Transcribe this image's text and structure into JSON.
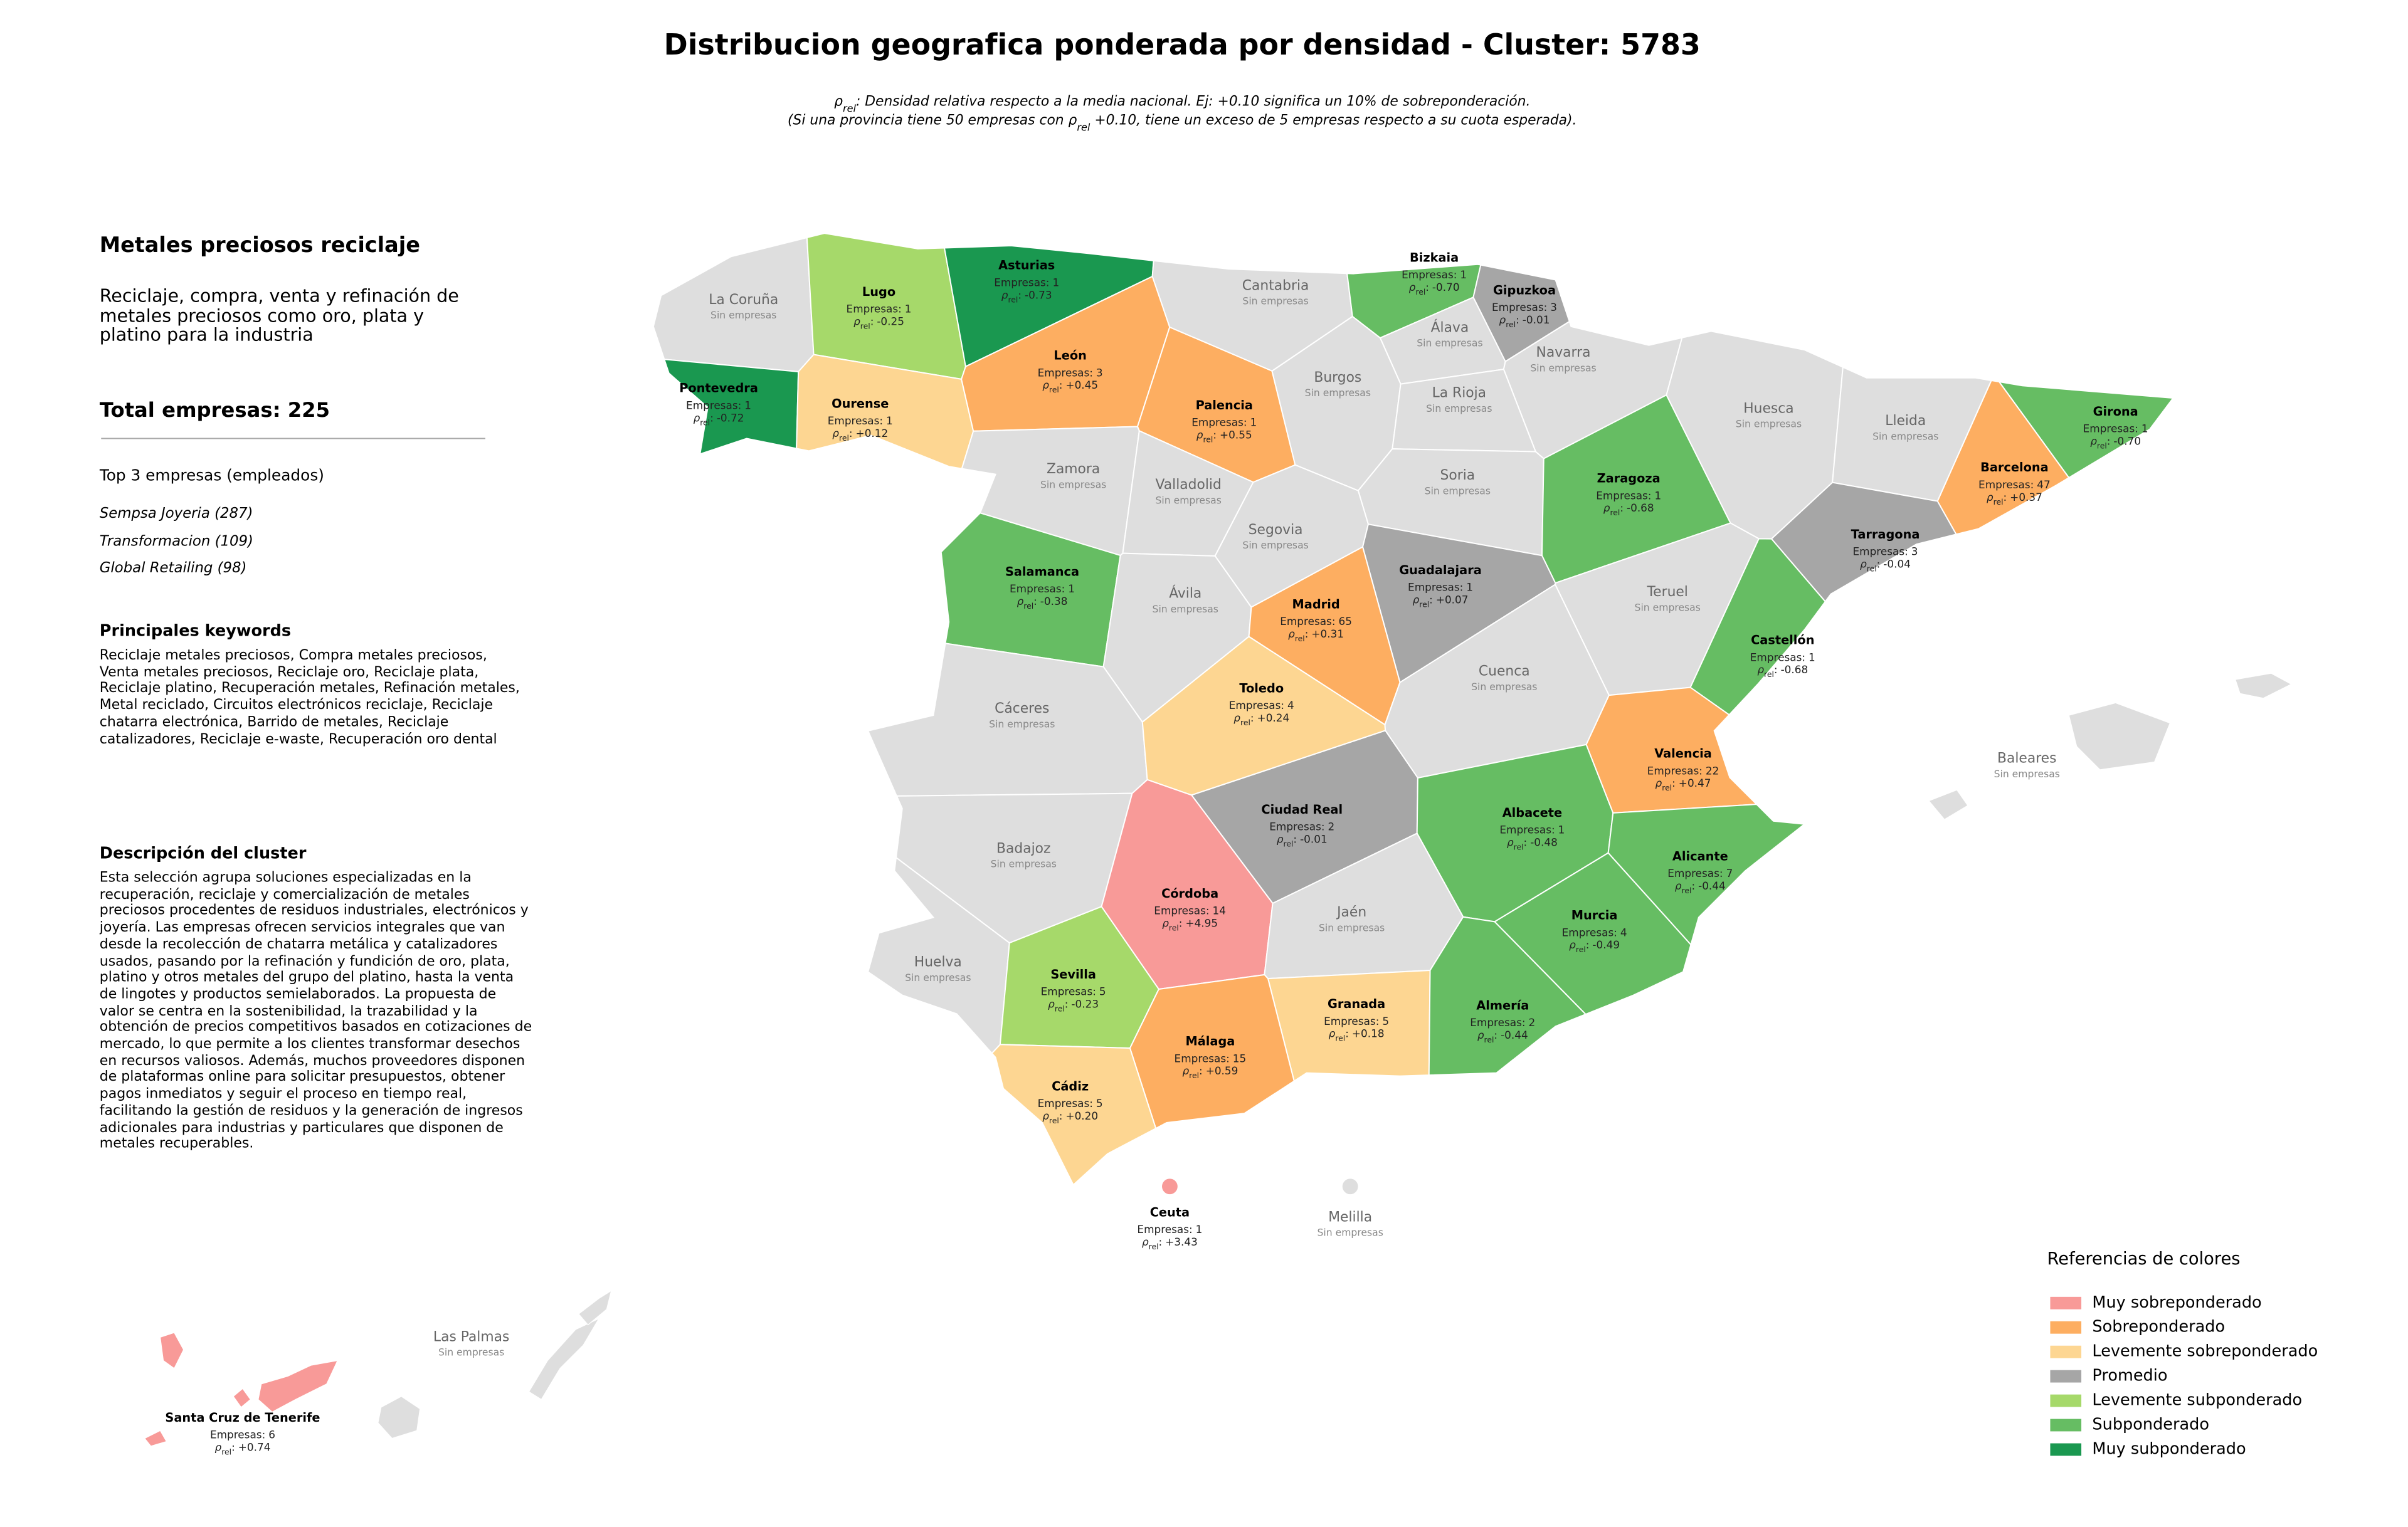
{
  "title": "Distribucion geografica ponderada por densidad - Cluster: 5783",
  "subtitle_lines": [
    [
      "ρ",
      "rel",
      ": Densidad relativa respecto a la media nacional. Ej: +0.10 significa un 10% de sobreponderación."
    ],
    [
      "(Si una provincia tiene 50 empresas con ρ",
      "rel",
      " +0.10, tiene un exceso de 5 empresas respecto a su cuota esperada)."
    ]
  ],
  "panel": {
    "title": "Metales preciosos reciclaje",
    "description": "Reciclaje, compra, venta y refinación de metales preciosos como oro, plata y platino para la industria",
    "total_label": "Total empresas:",
    "total": 225,
    "top_title": "Top 3 empresas (empleados)",
    "top_companies": [
      "Sempsa Joyeria (287)",
      "Transformacion (109)",
      "Global Retailing (98)"
    ],
    "keywords_title": "Principales keywords",
    "keywords": "Reciclaje metales preciosos, Compra metales preciosos, Venta metales preciosos, Reciclaje oro, Reciclaje plata, Reciclaje platino, Recuperación metales, Refinación metales, Metal reciclado, Circuitos electrónicos reciclaje, Reciclaje chatarra electrónica, Barrido de metales, Reciclaje catalizadores, Reciclaje e-waste, Recuperación oro dental",
    "cluster_title": "Descripción del cluster",
    "cluster_description": "Esta selección agrupa soluciones especializadas en la recuperación, reciclaje y comercialización de metales preciosos procedentes de residuos industriales, electrónicos y joyería. Las empresas ofrecen servicios integrales que van desde la recolección de chatarra metálica y catalizadores usados, pasando por la refinación y fundición de oro, plata, platino y otros metales del grupo del platino, hasta la venta de lingotes y productos semielaborados. La propuesta de valor se centra en la sostenibilidad, la trazabilidad y la obtención de precios competitivos basados en cotizaciones de mercado, lo que permite a los clientes transformar desechos en recursos valiosos. Además, muchos proveedores disponen de plataformas online para solicitar presupuestos, obtener pagos inmediatos y seguir el proceso en tiempo real, facilitando la gestión de residuos y la generación de ingresos adicionales para industrias y particulares que disponen de metales recuperables."
  },
  "map": {
    "empresas_prefix": "Empresas:",
    "rho_symbol": "ρ",
    "rho_subscript": "rel",
    "rho_separator": ":",
    "no_data_label": "Sin empresas",
    "no_data_color": "#dedede",
    "provinces": [
      {
        "name": "La Coruña"
      },
      {
        "name": "Lugo",
        "empresas": 1,
        "rho": -0.25,
        "rho_label": "-0.25",
        "category": "Levemente subponderado"
      },
      {
        "name": "Asturias",
        "empresas": 1,
        "rho": -0.73,
        "rho_label": "-0.73",
        "category": "Muy subponderado"
      },
      {
        "name": "Cantabria"
      },
      {
        "name": "Bizkaia",
        "empresas": 1,
        "rho": -0.7,
        "rho_label": "-0.70",
        "category": "Subponderado"
      },
      {
        "name": "Gipuzkoa",
        "empresas": 3,
        "rho": -0.01,
        "rho_label": "-0.01",
        "category": "Promedio"
      },
      {
        "name": "Álava"
      },
      {
        "name": "Navarra"
      },
      {
        "name": "Pontevedra",
        "empresas": 1,
        "rho": -0.72,
        "rho_label": "-0.72",
        "category": "Muy subponderado"
      },
      {
        "name": "Ourense",
        "empresas": 1,
        "rho": 0.12,
        "rho_label": "+0.12",
        "category": "Levemente sobreponderado"
      },
      {
        "name": "León",
        "empresas": 3,
        "rho": 0.45,
        "rho_label": "+0.45",
        "category": "Sobreponderado"
      },
      {
        "name": "Palencia",
        "empresas": 1,
        "rho": 0.55,
        "rho_label": "+0.55",
        "category": "Sobreponderado"
      },
      {
        "name": "Burgos"
      },
      {
        "name": "La Rioja"
      },
      {
        "name": "Huesca"
      },
      {
        "name": "Lleida"
      },
      {
        "name": "Girona",
        "empresas": 1,
        "rho": -0.7,
        "rho_label": "-0.70",
        "category": "Subponderado"
      },
      {
        "name": "Zamora"
      },
      {
        "name": "Valladolid"
      },
      {
        "name": "Soria"
      },
      {
        "name": "Zaragoza",
        "empresas": 1,
        "rho": -0.68,
        "rho_label": "-0.68",
        "category": "Subponderado"
      },
      {
        "name": "Barcelona",
        "empresas": 47,
        "rho": 0.37,
        "rho_label": "+0.37",
        "category": "Sobreponderado"
      },
      {
        "name": "Salamanca",
        "empresas": 1,
        "rho": -0.38,
        "rho_label": "-0.38",
        "category": "Subponderado"
      },
      {
        "name": "Segovia"
      },
      {
        "name": "Ávila"
      },
      {
        "name": "Guadalajara",
        "empresas": 1,
        "rho": 0.07,
        "rho_label": "+0.07",
        "category": "Promedio"
      },
      {
        "name": "Madrid",
        "empresas": 65,
        "rho": 0.31,
        "rho_label": "+0.31",
        "category": "Sobreponderado"
      },
      {
        "name": "Tarragona",
        "empresas": 3,
        "rho": -0.04,
        "rho_label": "-0.04",
        "category": "Promedio"
      },
      {
        "name": "Teruel"
      },
      {
        "name": "Castellón",
        "empresas": 1,
        "rho": -0.68,
        "rho_label": "-0.68",
        "category": "Subponderado"
      },
      {
        "name": "Cáceres"
      },
      {
        "name": "Toledo",
        "empresas": 4,
        "rho": 0.24,
        "rho_label": "+0.24",
        "category": "Levemente sobreponderado"
      },
      {
        "name": "Cuenca"
      },
      {
        "name": "Valencia",
        "empresas": 22,
        "rho": 0.47,
        "rho_label": "+0.47",
        "category": "Sobreponderado"
      },
      {
        "name": "Badajoz"
      },
      {
        "name": "Ciudad Real",
        "empresas": 2,
        "rho": -0.01,
        "rho_label": "-0.01",
        "category": "Promedio"
      },
      {
        "name": "Albacete",
        "empresas": 1,
        "rho": -0.48,
        "rho_label": "-0.48",
        "category": "Subponderado"
      },
      {
        "name": "Alicante",
        "empresas": 7,
        "rho": -0.44,
        "rho_label": "-0.44",
        "category": "Subponderado"
      },
      {
        "name": "Córdoba",
        "empresas": 14,
        "rho": 4.95,
        "rho_label": "+4.95",
        "category": "Muy sobreponderado"
      },
      {
        "name": "Jaén"
      },
      {
        "name": "Murcia",
        "empresas": 4,
        "rho": -0.49,
        "rho_label": "-0.49",
        "category": "Subponderado"
      },
      {
        "name": "Huelva"
      },
      {
        "name": "Sevilla",
        "empresas": 5,
        "rho": -0.23,
        "rho_label": "-0.23",
        "category": "Levemente subponderado"
      },
      {
        "name": "Granada",
        "empresas": 5,
        "rho": 0.18,
        "rho_label": "+0.18",
        "category": "Levemente sobreponderado"
      },
      {
        "name": "Almería",
        "empresas": 2,
        "rho": -0.44,
        "rho_label": "-0.44",
        "category": "Subponderado"
      },
      {
        "name": "Málaga",
        "empresas": 15,
        "rho": 0.59,
        "rho_label": "+0.59",
        "category": "Sobreponderado"
      },
      {
        "name": "Cádiz",
        "empresas": 5,
        "rho": 0.2,
        "rho_label": "+0.20",
        "category": "Levemente sobreponderado"
      },
      {
        "name": "Baleares"
      },
      {
        "name": "Las Palmas"
      },
      {
        "name": "Santa Cruz de Tenerife",
        "empresas": 6,
        "rho": 0.74,
        "rho_label": "+0.74",
        "category": "Muy sobreponderado"
      },
      {
        "name": "Ceuta",
        "empresas": 1,
        "rho": 3.43,
        "rho_label": "+3.43",
        "category": "Muy sobreponderado"
      },
      {
        "name": "Melilla"
      }
    ]
  },
  "legend": {
    "title": "Referencias de colores",
    "items": [
      {
        "label": "Muy sobreponderado",
        "color": "#f89a98"
      },
      {
        "label": "Sobreponderado",
        "color": "#fdae61"
      },
      {
        "label": "Levemente sobreponderado",
        "color": "#fdd692"
      },
      {
        "label": "Promedio",
        "color": "#a6a6a6"
      },
      {
        "label": "Levemente subponderado",
        "color": "#a6d96a"
      },
      {
        "label": "Subponderado",
        "color": "#66bd63"
      },
      {
        "label": "Muy subponderado",
        "color": "#1a9850"
      }
    ]
  }
}
